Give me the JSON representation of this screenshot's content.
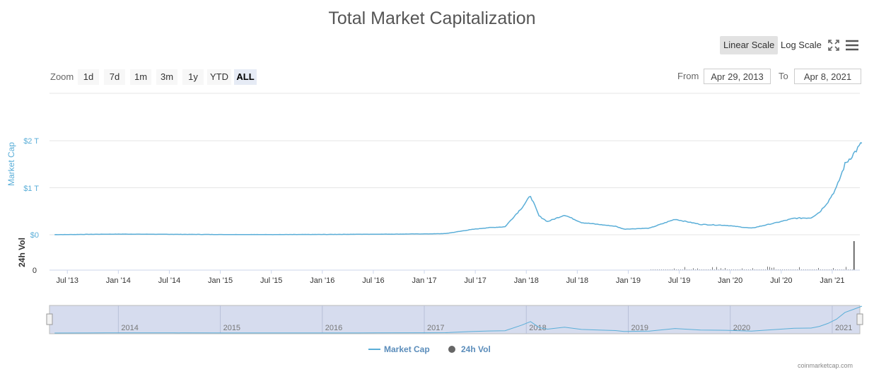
{
  "header": {
    "title": "Total Market Capitalization",
    "linear_scale": "Linear Scale",
    "log_scale": "Log Scale",
    "fullscreen_icon": "fullscreen-icon",
    "menu_icon": "menu-icon"
  },
  "zoom": {
    "label": "Zoom",
    "buttons": [
      "1d",
      "7d",
      "1m",
      "3m",
      "1y",
      "YTD",
      "ALL"
    ],
    "active": "ALL"
  },
  "range": {
    "from_label": "From",
    "from_value": "Apr 29, 2013",
    "to_label": "To",
    "to_value": "Apr 8, 2021"
  },
  "legend": {
    "market_cap": "Market Cap",
    "vol": "24h Vol"
  },
  "credit": "coinmarketcap.com",
  "colors": {
    "line": "#5aaed8",
    "vol": "#555555",
    "navigator_fill": "#d6dcee",
    "grid": "#e6e6e6"
  },
  "chart_data": {
    "type": "line",
    "series": [
      {
        "name": "Market Cap",
        "x": [
          "2013-05",
          "2013-11",
          "2014-01",
          "2014-07",
          "2015-01",
          "2015-07",
          "2016-01",
          "2016-07",
          "2017-01",
          "2017-03",
          "2017-06",
          "2017-08",
          "2017-10",
          "2017-12",
          "2018-01",
          "2018-02",
          "2018-03",
          "2018-05",
          "2018-07",
          "2018-09",
          "2018-11",
          "2018-12",
          "2019-03",
          "2019-06",
          "2019-09",
          "2019-12",
          "2020-03",
          "2020-06",
          "2020-08",
          "2020-10",
          "2020-11",
          "2020-12",
          "2021-01",
          "2021-02",
          "2021-03",
          "2021-04"
        ],
        "values": [
          0.002,
          0.012,
          0.014,
          0.009,
          0.005,
          0.004,
          0.007,
          0.012,
          0.018,
          0.025,
          0.11,
          0.15,
          0.17,
          0.58,
          0.83,
          0.4,
          0.28,
          0.42,
          0.26,
          0.22,
          0.18,
          0.12,
          0.14,
          0.33,
          0.22,
          0.2,
          0.14,
          0.26,
          0.35,
          0.36,
          0.48,
          0.7,
          1.0,
          1.5,
          1.72,
          1.95
        ]
      },
      {
        "name": "24h Vol"
      }
    ],
    "y_axis": {
      "label": "Market Cap",
      "ticks": [
        "$0",
        "$1 T",
        "$2 T"
      ],
      "min": 0,
      "max": 2
    },
    "vol_axis": {
      "label": "24h Vol",
      "ticks": [
        "0"
      ]
    },
    "x_ticks": [
      "Jul '13",
      "Jan '14",
      "Jul '14",
      "Jan '15",
      "Jul '15",
      "Jan '16",
      "Jul '16",
      "Jan '17",
      "Jul '17",
      "Jan '18",
      "Jul '18",
      "Jan '19",
      "Jul '19",
      "Jan '20",
      "Jul '20",
      "Jan '21"
    ],
    "navigator_ticks": [
      "2014",
      "2015",
      "2016",
      "2017",
      "2018",
      "2019",
      "2020",
      "2021"
    ],
    "grid": true,
    "legend_position": "bottom-center"
  }
}
